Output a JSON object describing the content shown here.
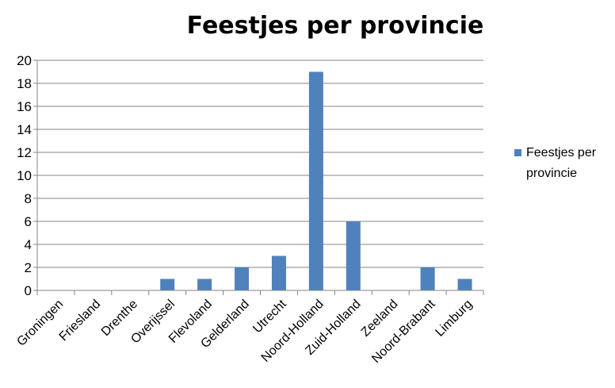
{
  "chart_data": {
    "type": "bar",
    "title": "Feestjes per provincie",
    "categories": [
      "Groningen",
      "Friesland",
      "Drenthe",
      "Overijssel",
      "Flevoland",
      "Gelderland",
      "Utrecht",
      "Noord-Holland",
      "Zuid-Holland",
      "Zeeland",
      "Noord-Brabant",
      "Limburg"
    ],
    "series": [
      {
        "name": "Feestjes per provincie",
        "values": [
          0,
          0,
          0,
          1,
          1,
          2,
          3,
          19,
          6,
          0,
          2,
          1
        ],
        "color": "#4f81bd"
      }
    ],
    "yticks": [
      0,
      2,
      4,
      6,
      8,
      10,
      12,
      14,
      16,
      18,
      20
    ],
    "ylim": [
      0,
      20
    ],
    "grid": true,
    "legend": {
      "position": "right",
      "lines": [
        "Feestjes per",
        "provincie"
      ]
    }
  }
}
